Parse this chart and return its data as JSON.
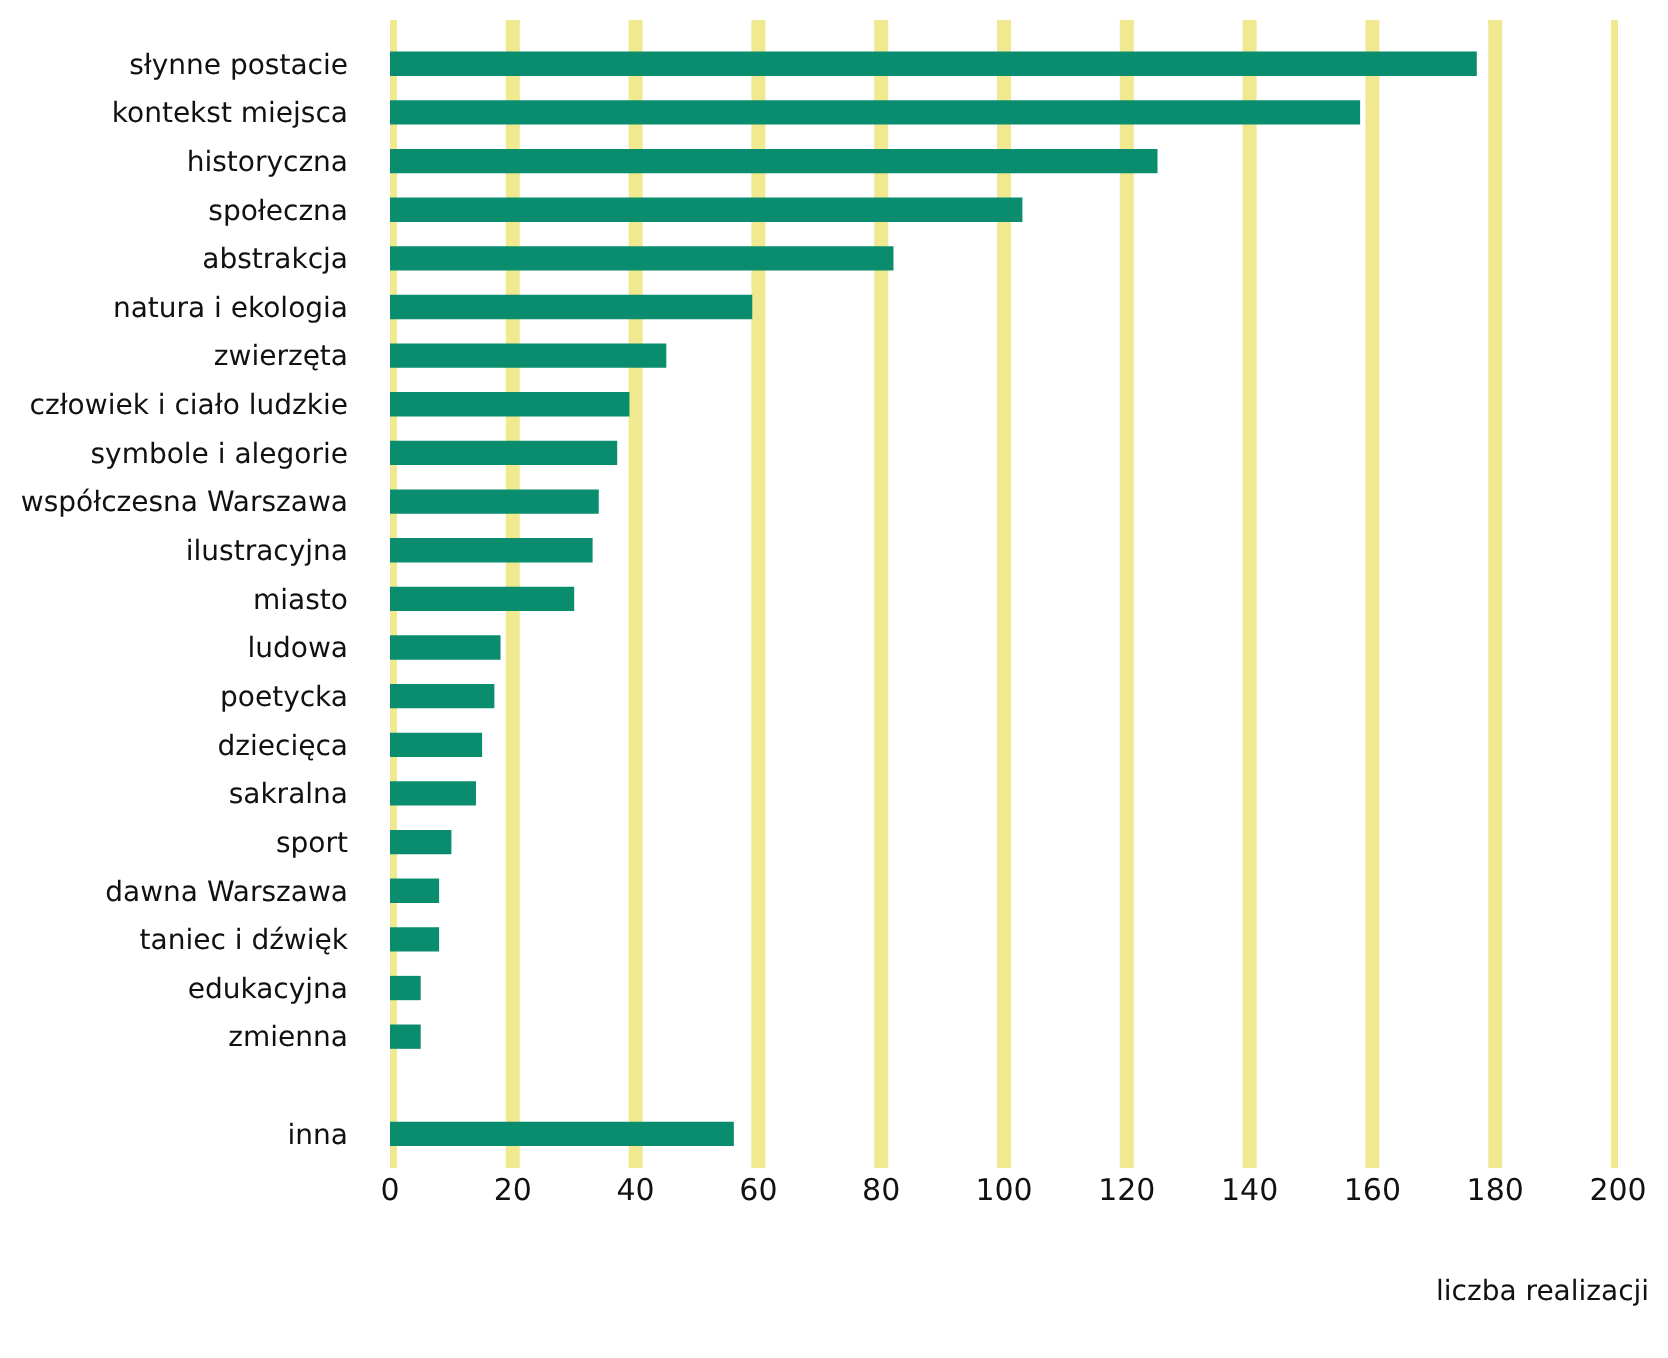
{
  "chart_data": {
    "type": "bar",
    "orientation": "horizontal",
    "xlabel": "liczba realizacji",
    "categories": [
      "słynne postacie",
      "kontekst miejsca",
      "historyczna",
      "społeczna",
      "abstrakcja",
      "natura i ekologia",
      "zwierzęta",
      "człowiek i ciało ludzkie",
      "symbole i alegorie",
      "współczesna Warszawa",
      "ilustracyjna",
      "miasto",
      "ludowa",
      "poetycka",
      "dziecięca",
      "sakralna",
      "sport",
      "dawna Warszawa",
      "taniec i dźwięk",
      "edukacyjna",
      "zmienna",
      null,
      "inna"
    ],
    "values": [
      177,
      158,
      125,
      103,
      82,
      59,
      45,
      39,
      37,
      34,
      33,
      30,
      18,
      17,
      15,
      14,
      10,
      8,
      8,
      5,
      5,
      null,
      56
    ],
    "color": "#0a8c6e",
    "xlim": [
      0,
      200
    ],
    "xticks": [
      0,
      20,
      40,
      60,
      80,
      100,
      120,
      140,
      160,
      180,
      200
    ],
    "grid": "x",
    "legend": false
  }
}
